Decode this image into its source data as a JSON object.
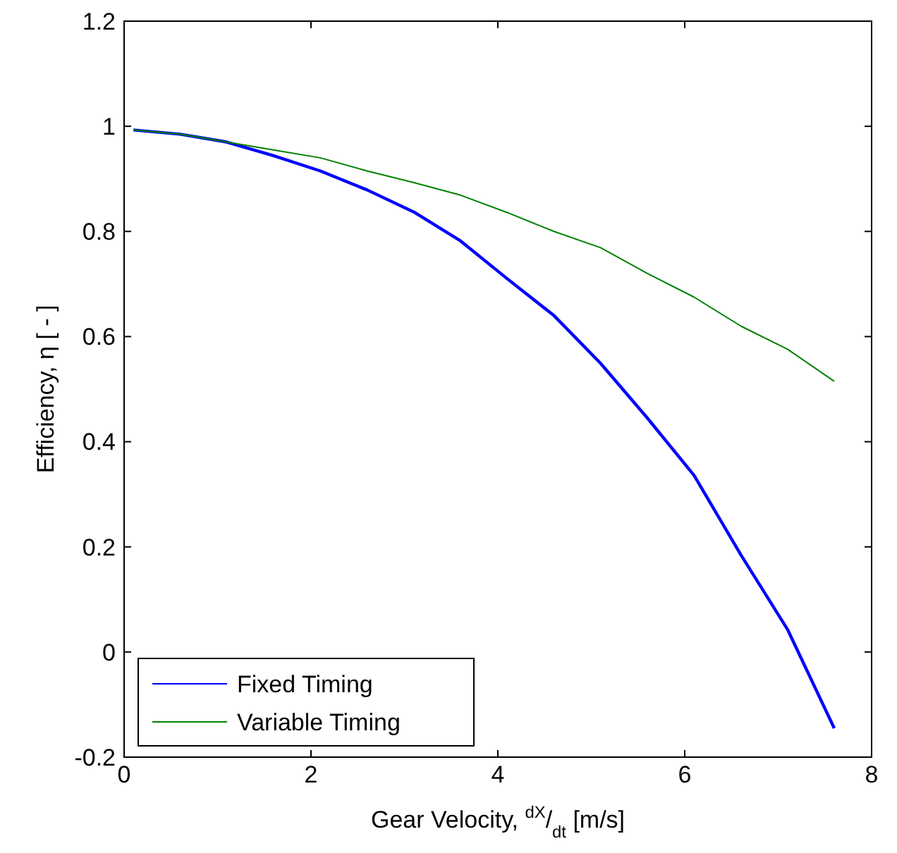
{
  "chart_data": {
    "type": "line",
    "xlabel": "Gear Velocity, $^{dX}$/$_{dt}$ [m/s]",
    "ylabel": "Efficiency, η [ - ]",
    "x": [
      0.1,
      0.6,
      1.1,
      1.6,
      2.1,
      2.6,
      3.1,
      3.6,
      4.1,
      4.6,
      5.1,
      5.6,
      6.1,
      6.6,
      7.1,
      7.6
    ],
    "series": [
      {
        "name": "Fixed Timing",
        "color": "#0000ff",
        "values": [
          0.993,
          0.985,
          0.97,
          0.944,
          0.915,
          0.879,
          0.837,
          0.782,
          0.71,
          0.64,
          0.549,
          0.445,
          0.336,
          0.185,
          0.043,
          -0.145
        ]
      },
      {
        "name": "Variable Timing",
        "color": "#008000",
        "values": [
          0.993,
          0.985,
          0.97,
          0.955,
          0.94,
          0.915,
          0.893,
          0.869,
          0.836,
          0.8,
          0.769,
          0.72,
          0.675,
          0.62,
          0.576,
          0.515
        ]
      }
    ],
    "xlim": [
      0,
      8
    ],
    "xticks": [
      0,
      2,
      4,
      6,
      8
    ],
    "ylim": [
      -0.2,
      1.2
    ],
    "yticks": [
      -0.2,
      0,
      0.2,
      0.4,
      0.6,
      0.8,
      1,
      1.2
    ],
    "legend": "bottom left",
    "grid": false,
    "line_style": "solid",
    "marker": "none"
  }
}
